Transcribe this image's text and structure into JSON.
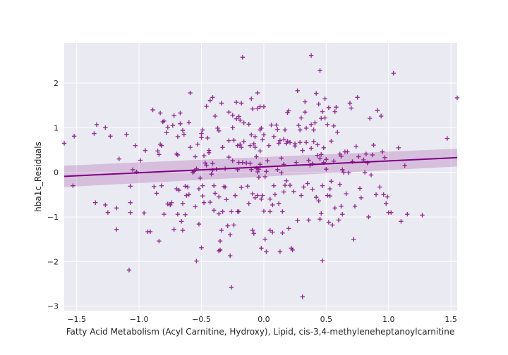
{
  "colors": {
    "plot_bg": "#eaeaf2",
    "grid": "#ffffff",
    "marker": "#800080",
    "ci_band": "#800080",
    "regression": "#800080",
    "text": "#262626"
  },
  "chart_data": {
    "type": "scatter",
    "marker": "plus",
    "xlabel": "Fatty Acid Metabolism (Acyl Carnitine, Hydroxy), Lipid, cis-3,4-methyleneheptanoylcarnitine",
    "ylabel": "hba1c_Residuals",
    "xlim": [
      -1.6,
      1.55
    ],
    "ylim": [
      -3.1,
      2.9
    ],
    "xticks": [
      -1.5,
      -1.0,
      -0.5,
      0.0,
      0.5,
      1.0,
      1.5
    ],
    "xtick_labels": [
      "−1.5",
      "−1.0",
      "−0.5",
      "0.0",
      "0.5",
      "1.0",
      "1.5"
    ],
    "yticks": [
      -3,
      -2,
      -1,
      0,
      1,
      2
    ],
    "ytick_labels": [
      "−3",
      "−2",
      "−1",
      "0",
      "1",
      "2"
    ],
    "grid": true,
    "regression": {
      "x": [
        -1.6,
        1.55
      ],
      "y": [
        -0.09,
        0.33
      ],
      "ci_upper": [
        0.15,
        0.53
      ],
      "ci_lower": [
        -0.33,
        0.13
      ]
    },
    "points": [
      [
        -1.6,
        0.65
      ],
      [
        -1.53,
        -0.3
      ],
      [
        -1.52,
        0.81
      ],
      [
        -1.36,
        0.87
      ],
      [
        -1.35,
        -0.68
      ],
      [
        -1.34,
        1.07
      ],
      [
        -1.27,
        1.0
      ],
      [
        -1.27,
        -0.73
      ],
      [
        -1.25,
        -0.9
      ],
      [
        -1.23,
        0.81
      ],
      [
        -1.18,
        -0.8
      ],
      [
        -1.18,
        -1.28
      ],
      [
        -1.16,
        0.3
      ],
      [
        -1.1,
        0.85
      ],
      [
        -1.08,
        -2.19
      ],
      [
        -1.07,
        -0.68
      ],
      [
        -1.07,
        -0.31
      ],
      [
        -1.07,
        -0.9
      ],
      [
        -1.05,
        0.06
      ],
      [
        -1.03,
        0.6
      ],
      [
        -1.02,
        0.01
      ],
      [
        -0.99,
        0.27
      ],
      [
        -0.96,
        -0.91
      ],
      [
        -0.95,
        0.49
      ],
      [
        -0.93,
        -1.33
      ],
      [
        -0.91,
        -1.33
      ],
      [
        -0.89,
        1.4
      ],
      [
        -0.88,
        -0.32
      ],
      [
        -0.86,
        -0.47
      ],
      [
        -0.85,
        0.48
      ],
      [
        -0.84,
        0.4
      ],
      [
        -0.84,
        -1.54
      ],
      [
        -0.83,
        1.33
      ],
      [
        -0.83,
        0.63
      ],
      [
        -0.82,
        -0.3
      ],
      [
        -0.82,
        0.6
      ],
      [
        -0.81,
        1.13
      ],
      [
        -0.8,
        -0.94
      ],
      [
        -0.8,
        1.15
      ],
      [
        -0.78,
        0.89
      ],
      [
        -0.77,
        1.01
      ],
      [
        -0.77,
        -0.71
      ],
      [
        -0.75,
        -0.73
      ],
      [
        -0.74,
        -0.68
      ],
      [
        -0.73,
        1.05
      ],
      [
        -0.72,
        1.27
      ],
      [
        -0.72,
        -1.28
      ],
      [
        -0.7,
        0.41
      ],
      [
        -0.7,
        -0.37
      ],
      [
        -0.69,
        0.8
      ],
      [
        -0.69,
        -0.94
      ],
      [
        -0.69,
        0.39
      ],
      [
        -0.68,
        -0.4
      ],
      [
        -0.67,
        1.33
      ],
      [
        -0.67,
        1.09
      ],
      [
        -0.66,
        -1.1
      ],
      [
        -0.65,
        -0.7
      ],
      [
        -0.65,
        -1.3
      ],
      [
        -0.65,
        0.94
      ],
      [
        -0.64,
        0.85
      ],
      [
        -0.63,
        -0.95
      ],
      [
        -0.63,
        -0.31
      ],
      [
        -0.62,
        -0.52
      ],
      [
        -0.61,
        -0.33
      ],
      [
        -0.6,
        1.12
      ],
      [
        -0.6,
        -0.5
      ],
      [
        -0.59,
        0.56
      ],
      [
        -0.59,
        1.78
      ],
      [
        -0.57,
        0.0
      ],
      [
        -0.56,
        0.02
      ],
      [
        -0.55,
        0.35
      ],
      [
        -0.55,
        -0.77
      ],
      [
        -0.54,
        0.08
      ],
      [
        -0.54,
        -1.99
      ],
      [
        -0.53,
        0.63
      ],
      [
        -0.52,
        -1.16
      ],
      [
        -0.52,
        -0.37
      ],
      [
        -0.51,
        -0.13
      ],
      [
        -0.5,
        0.87
      ],
      [
        -0.5,
        -1.69
      ],
      [
        -0.5,
        0.78
      ],
      [
        -0.49,
        -0.3
      ],
      [
        -0.49,
        -0.53
      ],
      [
        -0.49,
        0.95
      ],
      [
        -0.48,
        0.37
      ],
      [
        -0.48,
        -0.68
      ],
      [
        -0.47,
        0.21
      ],
      [
        -0.46,
        0.16
      ],
      [
        -0.46,
        1.48
      ],
      [
        -0.45,
        0.77
      ],
      [
        -0.44,
        0.49
      ],
      [
        -0.44,
        0.44
      ],
      [
        -0.43,
        1.61
      ],
      [
        -0.43,
        -0.67
      ],
      [
        -0.42,
        -0.04
      ],
      [
        -0.41,
        1.68
      ],
      [
        -0.41,
        0.05
      ],
      [
        -0.41,
        0.2
      ],
      [
        -0.4,
        -0.85
      ],
      [
        -0.4,
        -0.3
      ],
      [
        -0.39,
        1.26
      ],
      [
        -0.39,
        -0.47
      ],
      [
        -0.38,
        0.07
      ],
      [
        -0.37,
        0.99
      ],
      [
        -0.36,
        -0.55
      ],
      [
        -0.36,
        -1.76
      ],
      [
        -0.36,
        -0.93
      ],
      [
        -0.36,
        0.93
      ],
      [
        -0.35,
        -1.54
      ],
      [
        -0.35,
        -1.74
      ],
      [
        -0.34,
        1.55
      ],
      [
        -0.34,
        -1.3
      ],
      [
        -0.33,
        0.56
      ],
      [
        -0.33,
        -0.88
      ],
      [
        -0.32,
        -0.32
      ],
      [
        -0.31,
        0.08
      ],
      [
        -0.31,
        -0.33
      ],
      [
        -0.3,
        -0.61
      ],
      [
        -0.29,
        -1.2
      ],
      [
        -0.28,
        0.71
      ],
      [
        -0.28,
        0.34
      ],
      [
        -0.28,
        1.35
      ],
      [
        -0.27,
        -1.87
      ],
      [
        -0.27,
        -1.4
      ],
      [
        -0.26,
        -2.58
      ],
      [
        -0.26,
        -0.88
      ],
      [
        -0.25,
        0.26
      ],
      [
        -0.25,
        1.0
      ],
      [
        -0.25,
        1.28
      ],
      [
        -0.24,
        -1.18
      ],
      [
        -0.24,
        0.72
      ],
      [
        -0.23,
        -0.52
      ],
      [
        -0.22,
        1.2
      ],
      [
        -0.22,
        1.57
      ],
      [
        -0.21,
        0.6
      ],
      [
        -0.21,
        -0.88
      ],
      [
        -0.21,
        0.06
      ],
      [
        -0.2,
        0.22
      ],
      [
        -0.2,
        1.25
      ],
      [
        -0.2,
        -0.88
      ],
      [
        -0.19,
        1.17
      ],
      [
        -0.19,
        0.63
      ],
      [
        -0.18,
        -0.34
      ],
      [
        -0.18,
        0.56
      ],
      [
        -0.18,
        1.55
      ],
      [
        -0.17,
        0.22
      ],
      [
        -0.17,
        2.58
      ],
      [
        -0.16,
        1.11
      ],
      [
        -0.16,
        0.69
      ],
      [
        -0.14,
        0.21
      ],
      [
        -0.13,
        -0.31
      ],
      [
        -0.12,
        -0.7
      ],
      [
        -0.12,
        1.08
      ],
      [
        -0.11,
        0.6
      ],
      [
        -0.11,
        0.2
      ],
      [
        -0.1,
        1.65
      ],
      [
        -0.1,
        0.06
      ],
      [
        -0.1,
        0.84
      ],
      [
        -0.09,
        1.42
      ],
      [
        -0.09,
        -1.3
      ],
      [
        -0.09,
        -0.48
      ],
      [
        -0.08,
        -1.37
      ],
      [
        -0.08,
        0.64
      ],
      [
        -0.07,
        -0.57
      ],
      [
        -0.07,
        0.56
      ],
      [
        -0.07,
        0.8
      ],
      [
        -0.06,
        0.35
      ],
      [
        -0.06,
        0.09
      ],
      [
        -0.05,
        1.43
      ],
      [
        -0.05,
        1.78
      ],
      [
        -0.05,
        0.01
      ],
      [
        -0.05,
        -0.52
      ],
      [
        -0.04,
        0.07
      ],
      [
        -0.04,
        -0.11
      ],
      [
        -0.03,
        0.18
      ],
      [
        -0.03,
        0.48
      ],
      [
        -0.03,
        1.47
      ],
      [
        -0.03,
        0.95
      ],
      [
        -0.02,
        -1.7
      ],
      [
        -0.02,
        -0.6
      ],
      [
        -0.02,
        0.99
      ],
      [
        -0.01,
        -0.52
      ],
      [
        -0.01,
        0.73
      ],
      [
        0.0,
        0.84
      ],
      [
        0.0,
        -0.87
      ],
      [
        0.0,
        1.47
      ],
      [
        0.01,
        -0.1
      ],
      [
        0.01,
        -1.5
      ],
      [
        0.02,
        -1.78
      ],
      [
        0.02,
        0.02
      ],
      [
        0.03,
        0.26
      ],
      [
        0.04,
        0.6
      ],
      [
        0.05,
        -1.3
      ],
      [
        0.05,
        -0.6
      ],
      [
        0.05,
        -0.88
      ],
      [
        0.06,
        1.06
      ],
      [
        0.07,
        -1.34
      ],
      [
        0.07,
        -0.73
      ],
      [
        0.08,
        0.8
      ],
      [
        0.08,
        -0.3
      ],
      [
        0.09,
        -0.5
      ],
      [
        0.1,
        1.06
      ],
      [
        0.11,
        0.96
      ],
      [
        0.11,
        0.06
      ],
      [
        0.12,
        0.65
      ],
      [
        0.12,
        -0.7
      ],
      [
        0.13,
        0.71
      ],
      [
        0.13,
        -1.78
      ],
      [
        0.14,
        0.32
      ],
      [
        0.14,
        -0.01
      ],
      [
        0.15,
        -1.36
      ],
      [
        0.15,
        -0.88
      ],
      [
        0.16,
        0.74
      ],
      [
        0.16,
        0.18
      ],
      [
        0.16,
        -0.44
      ],
      [
        0.17,
        0.95
      ],
      [
        0.17,
        -0.29
      ],
      [
        0.18,
        -0.19
      ],
      [
        0.18,
        0.65
      ],
      [
        0.19,
        0.7
      ],
      [
        0.19,
        1.34
      ],
      [
        0.2,
        1.38
      ],
      [
        0.2,
        -1.26
      ],
      [
        0.21,
        -0.29
      ],
      [
        0.21,
        0.67
      ],
      [
        0.22,
        -1.7
      ],
      [
        0.23,
        -1.74
      ],
      [
        0.24,
        -0.43
      ],
      [
        0.25,
        0.59
      ],
      [
        0.25,
        0.64
      ],
      [
        0.26,
        0.22
      ],
      [
        0.27,
        1.83
      ],
      [
        0.27,
        -1.08
      ],
      [
        0.28,
        1.05
      ],
      [
        0.29,
        0.67
      ],
      [
        0.29,
        0.95
      ],
      [
        0.3,
        1.22
      ],
      [
        0.3,
        -0.52
      ],
      [
        0.31,
        -2.79
      ],
      [
        0.31,
        0.49
      ],
      [
        0.32,
        -0.33
      ],
      [
        0.33,
        1.35
      ],
      [
        0.33,
        1.58
      ],
      [
        0.34,
        0.67
      ],
      [
        0.34,
        0.99
      ],
      [
        0.35,
        -0.25
      ],
      [
        0.36,
        -1.07
      ],
      [
        0.36,
        0.27
      ],
      [
        0.37,
        0.16
      ],
      [
        0.38,
        1.07
      ],
      [
        0.38,
        0.54
      ],
      [
        0.38,
        2.62
      ],
      [
        0.39,
        -0.38
      ],
      [
        0.39,
        0.19
      ],
      [
        0.4,
        0.95
      ],
      [
        0.4,
        0.69
      ],
      [
        0.41,
        1.11
      ],
      [
        0.42,
        -0.56
      ],
      [
        0.42,
        1.77
      ],
      [
        0.43,
        0.38
      ],
      [
        0.43,
        0.62
      ],
      [
        0.44,
        -0.64
      ],
      [
        0.44,
        1.53
      ],
      [
        0.45,
        0.31
      ],
      [
        0.45,
        -1.05
      ],
      [
        0.45,
        2.28
      ],
      [
        0.46,
        0.4
      ],
      [
        0.46,
        1.21
      ],
      [
        0.46,
        -0.92
      ],
      [
        0.47,
        1.36
      ],
      [
        0.47,
        -1.98
      ],
      [
        0.47,
        -0.3
      ],
      [
        0.48,
        0.55
      ],
      [
        0.48,
        0.22
      ],
      [
        0.49,
        1.22
      ],
      [
        0.49,
        1.65
      ],
      [
        0.5,
        0.29
      ],
      [
        0.5,
        0.07
      ],
      [
        0.51,
        1.07
      ],
      [
        0.51,
        -0.52
      ],
      [
        0.52,
        -1.12
      ],
      [
        0.52,
        1.45
      ],
      [
        0.53,
        -0.37
      ],
      [
        0.53,
        -0.53
      ],
      [
        0.54,
        0.7
      ],
      [
        0.54,
        -0.2
      ],
      [
        0.55,
        -1.18
      ],
      [
        0.56,
        0.25
      ],
      [
        0.56,
        1.04
      ],
      [
        0.57,
        1.36
      ],
      [
        0.57,
        -0.8
      ],
      [
        0.58,
        1.46
      ],
      [
        0.59,
        0.9
      ],
      [
        0.6,
        -1.07
      ],
      [
        0.61,
        0.41
      ],
      [
        0.61,
        -0.27
      ],
      [
        0.62,
        -0.76
      ],
      [
        0.62,
        0.36
      ],
      [
        0.63,
        -0.94
      ],
      [
        0.63,
        0.06
      ],
      [
        0.64,
        0.0
      ],
      [
        0.65,
        0.46
      ],
      [
        0.66,
        -0.48
      ],
      [
        0.67,
        0.46
      ],
      [
        0.68,
        -0.01
      ],
      [
        0.69,
        1.55
      ],
      [
        0.7,
        1.44
      ],
      [
        0.71,
        0.24
      ],
      [
        0.72,
        -1.5
      ],
      [
        0.73,
        -0.76
      ],
      [
        0.74,
        0.58
      ],
      [
        0.75,
        1.68
      ],
      [
        0.76,
        0.35
      ],
      [
        0.77,
        -0.36
      ],
      [
        0.78,
        -0.57
      ],
      [
        0.8,
        0.28
      ],
      [
        0.81,
        0.0
      ],
      [
        0.82,
        0.41
      ],
      [
        0.83,
        0.21
      ],
      [
        0.84,
        -1.0
      ],
      [
        0.85,
        1.21
      ],
      [
        0.86,
        -0.06
      ],
      [
        0.87,
        0.39
      ],
      [
        0.88,
        0.61
      ],
      [
        0.9,
        -0.5
      ],
      [
        0.91,
        1.39
      ],
      [
        0.93,
        -0.33
      ],
      [
        0.94,
        1.26
      ],
      [
        0.95,
        0.46
      ],
      [
        0.96,
        -0.5
      ],
      [
        0.97,
        0.33
      ],
      [
        0.98,
        -0.7
      ],
      [
        0.99,
        -0.55
      ],
      [
        1.0,
        -0.9
      ],
      [
        1.02,
        -0.9
      ],
      [
        1.04,
        2.22
      ],
      [
        1.08,
        0.55
      ],
      [
        1.1,
        -1.1
      ],
      [
        1.13,
        0.15
      ],
      [
        1.15,
        -0.94
      ],
      [
        1.27,
        -0.96
      ],
      [
        1.47,
        0.76
      ],
      [
        1.55,
        1.67
      ]
    ]
  }
}
